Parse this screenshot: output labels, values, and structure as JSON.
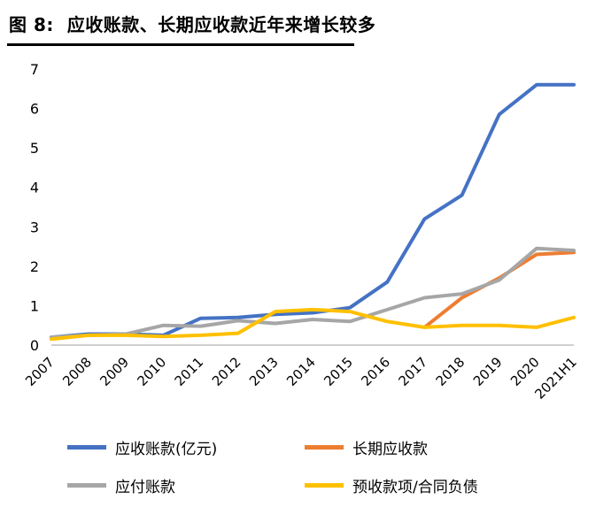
{
  "title": "图 8:  应收账款、长期应收款近年来增长较多",
  "chart_data": {
    "type": "line",
    "title": "图 8: 应收账款、长期应收款近年来增长较多",
    "categories": [
      "2007",
      "2008",
      "2009",
      "2010",
      "2011",
      "2012",
      "2013",
      "2014",
      "2015",
      "2016",
      "2017",
      "2018",
      "2019",
      "2020",
      "2021H1"
    ],
    "series": [
      {
        "name": "应收账款(亿元)",
        "color": "#4472C4",
        "values": [
          0.2,
          0.28,
          0.28,
          0.25,
          0.68,
          0.7,
          0.78,
          0.82,
          0.95,
          1.6,
          3.2,
          3.8,
          5.85,
          6.6,
          6.6
        ]
      },
      {
        "name": "长期应收款",
        "color": "#ED7D31",
        "values": [
          null,
          null,
          null,
          null,
          null,
          null,
          null,
          null,
          null,
          null,
          0.45,
          1.2,
          1.7,
          2.3,
          2.35
        ]
      },
      {
        "name": "应付账款",
        "color": "#A6A6A6",
        "values": [
          0.2,
          0.25,
          0.28,
          0.5,
          0.48,
          0.62,
          0.55,
          0.65,
          0.6,
          0.9,
          1.2,
          1.3,
          1.65,
          2.45,
          2.4
        ]
      },
      {
        "name": "预收款项/合同负债",
        "color": "#FFC000",
        "values": [
          0.15,
          0.25,
          0.25,
          0.22,
          0.25,
          0.3,
          0.85,
          0.9,
          0.85,
          0.6,
          0.45,
          0.5,
          0.5,
          0.45,
          0.7
        ]
      }
    ],
    "xlabel": "",
    "ylabel": "",
    "ylim": [
      0,
      7
    ],
    "yticks": [
      0,
      1,
      2,
      3,
      4,
      5,
      6,
      7
    ],
    "grid": false,
    "legend_position": "bottom"
  }
}
